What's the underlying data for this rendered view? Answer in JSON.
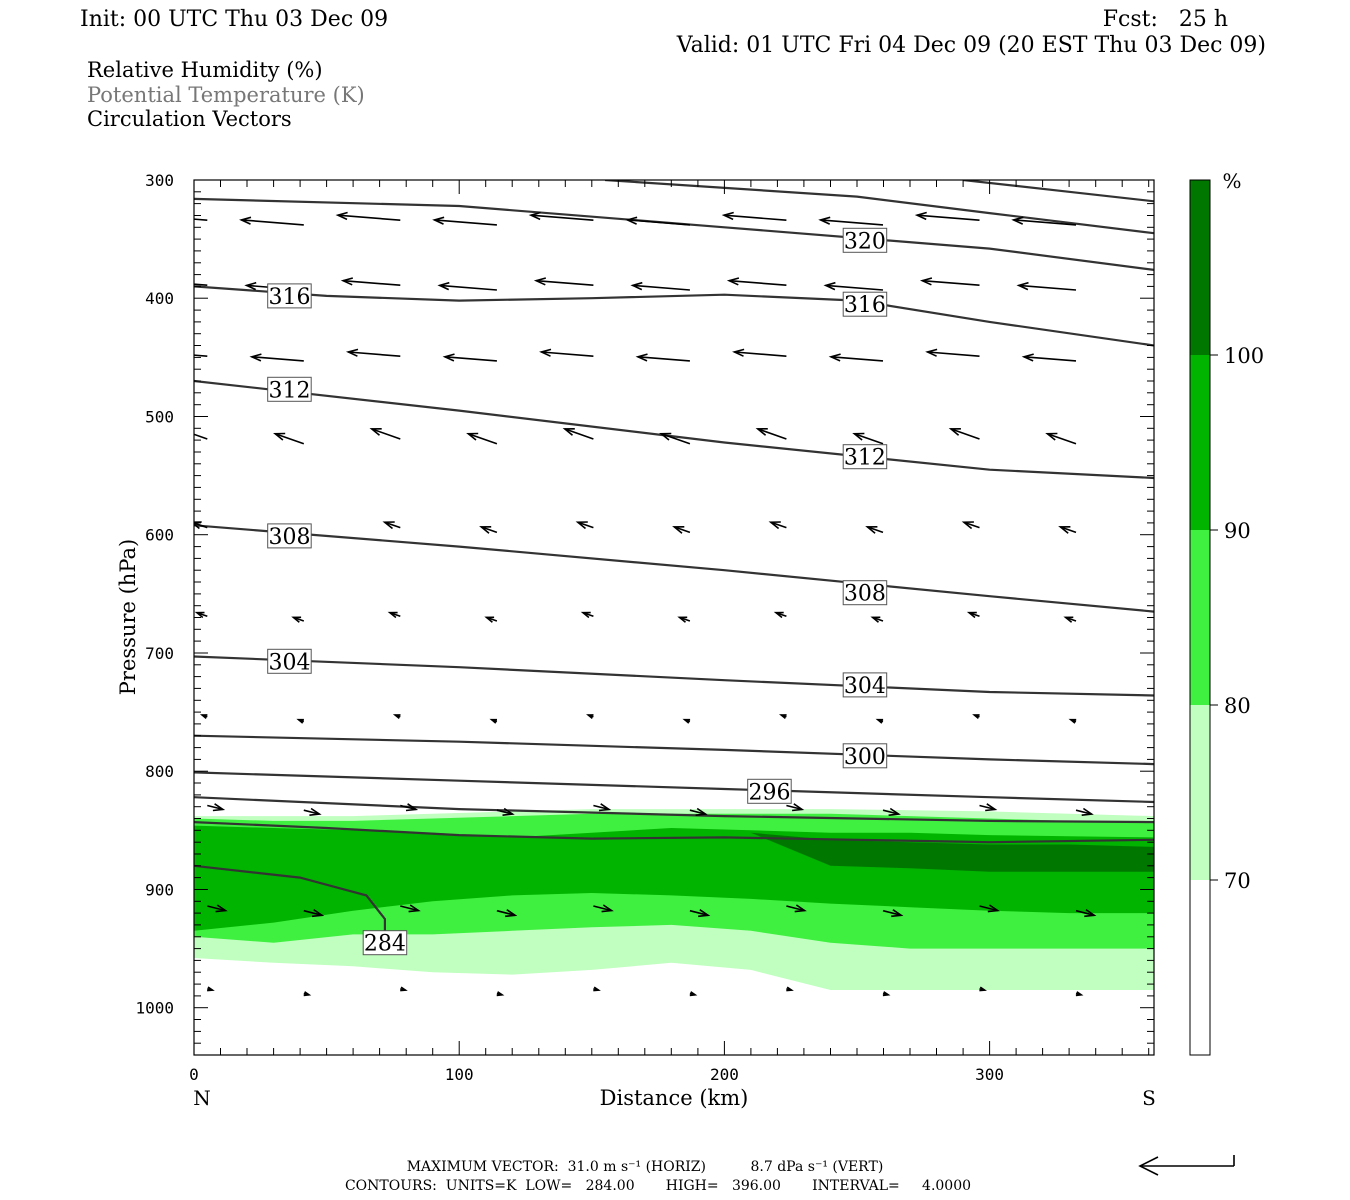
{
  "header": {
    "init": "Init: 00 UTC Thu 03 Dec 09",
    "fcst": "Fcst:   25 h",
    "valid": "Valid: 01 UTC Fri 04 Dec 09 (20 EST Thu 03 Dec 09)"
  },
  "fields": [
    {
      "label": "Relative Humidity (%)",
      "color": "#000000"
    },
    {
      "label": "Potential Temperature (K)",
      "color": "#777777"
    },
    {
      "label": "Circulation Vectors",
      "color": "#000000"
    }
  ],
  "footer": {
    "max_vector": "MAXIMUM VECTOR:  31.0 m s⁻¹ (HORIZ)          8.7 dPa s⁻¹ (VERT)",
    "contours": "CONTOURS:  UNITS=K  LOW=   284.00       HIGH=   396.00       INTERVAL=     4.0000"
  },
  "chart_data": {
    "type": "cross-section",
    "xlabel": "Distance (km)",
    "ylabel": "Pressure (hPa)",
    "xlim": [
      0,
      362
    ],
    "ylim": [
      1040,
      300
    ],
    "x_ticks": [
      0,
      100,
      200,
      300
    ],
    "y_ticks": [
      300,
      400,
      500,
      600,
      700,
      800,
      900,
      1000
    ],
    "x_end_labels": {
      "left": "N",
      "right": "S"
    },
    "colorbar": {
      "unit": "%",
      "levels": [
        70,
        80,
        90,
        100
      ],
      "colors": [
        "#ffffff",
        "#c0ffc0",
        "#40f040",
        "#00b400",
        "#007800"
      ]
    },
    "rh_fill": {
      "x": [
        0,
        30,
        60,
        90,
        120,
        150,
        180,
        210,
        240,
        270,
        300,
        330,
        362
      ],
      "bands": [
        {
          "level": 70,
          "color": "#c0ffc0",
          "top": [
            838,
            838,
            838,
            836,
            834,
            832,
            832,
            832,
            832,
            833,
            834,
            836,
            838
          ],
          "bottom": [
            958,
            962,
            965,
            970,
            972,
            968,
            962,
            968,
            985,
            985,
            985,
            985,
            985
          ]
        },
        {
          "level": 80,
          "color": "#40f040",
          "top": [
            840,
            842,
            842,
            840,
            838,
            836,
            836,
            836,
            836,
            838,
            840,
            842,
            844
          ],
          "bottom": [
            940,
            945,
            938,
            938,
            935,
            932,
            930,
            935,
            945,
            950,
            950,
            950,
            950
          ]
        },
        {
          "level": 90,
          "color": "#00b400",
          "top": [
            846,
            848,
            850,
            852,
            856,
            852,
            848,
            850,
            852,
            852,
            854,
            855,
            856
          ],
          "bottom": [
            935,
            928,
            918,
            910,
            905,
            903,
            905,
            908,
            912,
            915,
            918,
            920,
            920
          ]
        },
        {
          "level": 100,
          "color": "#007800",
          "top": [
            null,
            null,
            null,
            null,
            null,
            null,
            null,
            852,
            858,
            860,
            862,
            862,
            864
          ],
          "bottom": [
            null,
            null,
            null,
            null,
            null,
            null,
            null,
            852,
            880,
            882,
            885,
            885,
            885
          ]
        }
      ]
    },
    "theta_contours": [
      {
        "value": 284,
        "x": [
          0,
          40,
          65,
          72,
          72
        ],
        "p": [
          880,
          890,
          905,
          925,
          950
        ]
      },
      {
        "value": 288,
        "x": [
          0,
          50,
          100,
          150,
          200,
          250,
          300,
          362
        ],
        "p": [
          843,
          848,
          854,
          857,
          856,
          858,
          860,
          858
        ]
      },
      {
        "value": 292,
        "x": [
          0,
          100,
          200,
          300,
          362
        ],
        "p": [
          822,
          832,
          838,
          842,
          843
        ]
      },
      {
        "value": 296,
        "x": [
          0,
          100,
          200,
          300,
          362
        ],
        "p": [
          801,
          808,
          815,
          822,
          826
        ]
      },
      {
        "value": 300,
        "x": [
          0,
          100,
          200,
          300,
          362
        ],
        "p": [
          770,
          775,
          782,
          790,
          794
        ]
      },
      {
        "value": 304,
        "x": [
          0,
          100,
          200,
          300,
          362
        ],
        "p": [
          703,
          712,
          723,
          733,
          736
        ]
      },
      {
        "value": 308,
        "x": [
          0,
          100,
          200,
          300,
          362
        ],
        "p": [
          592,
          610,
          630,
          652,
          665
        ]
      },
      {
        "value": 312,
        "x": [
          0,
          100,
          200,
          300,
          362
        ],
        "p": [
          470,
          495,
          522,
          545,
          552
        ]
      },
      {
        "value": 316,
        "x": [
          0,
          50,
          100,
          150,
          200,
          250,
          300,
          362
        ],
        "p": [
          390,
          398,
          402,
          400,
          397,
          402,
          420,
          440
        ]
      },
      {
        "value": 320,
        "x": [
          0,
          100,
          200,
          300,
          362
        ],
        "p": [
          316,
          322,
          340,
          358,
          376
        ]
      },
      {
        "value": 324,
        "x": [
          155,
          250,
          300,
          362
        ],
        "p": [
          300,
          314,
          328,
          345
        ]
      },
      {
        "value": 328,
        "x": [
          290,
          330,
          362
        ],
        "p": [
          300,
          310,
          318
        ]
      }
    ],
    "contour_labels": [
      {
        "value": "316",
        "x": 36,
        "p": 398
      },
      {
        "value": "312",
        "x": 36,
        "p": 477
      },
      {
        "value": "308",
        "x": 36,
        "p": 601
      },
      {
        "value": "304",
        "x": 36,
        "p": 707
      },
      {
        "value": "320",
        "x": 253,
        "p": 351
      },
      {
        "value": "316",
        "x": 253,
        "p": 405
      },
      {
        "value": "312",
        "x": 253,
        "p": 534
      },
      {
        "value": "308",
        "x": 253,
        "p": 649
      },
      {
        "value": "304",
        "x": 253,
        "p": 727
      },
      {
        "value": "300",
        "x": 253,
        "p": 787
      },
      {
        "value": "296",
        "x": 217,
        "p": 817
      },
      {
        "value": "284",
        "x": 72,
        "p": 945
      }
    ],
    "vector_rows": [
      {
        "p": 335,
        "u": -24,
        "w": 0
      },
      {
        "p": 390,
        "u": -22,
        "w": 0
      },
      {
        "p": 450,
        "u": -20,
        "w": 0
      },
      {
        "p": 520,
        "u": -11,
        "w": 0
      },
      {
        "p": 595,
        "u": -6,
        "w": 0
      },
      {
        "p": 670,
        "u": -4,
        "w": 0
      },
      {
        "p": 755,
        "u": -2,
        "w": 0
      },
      {
        "p": 830,
        "u": 6,
        "w": 0
      },
      {
        "p": 915,
        "u": 7,
        "w": 0
      },
      {
        "p": 985,
        "u": 2,
        "w": 0
      }
    ]
  }
}
